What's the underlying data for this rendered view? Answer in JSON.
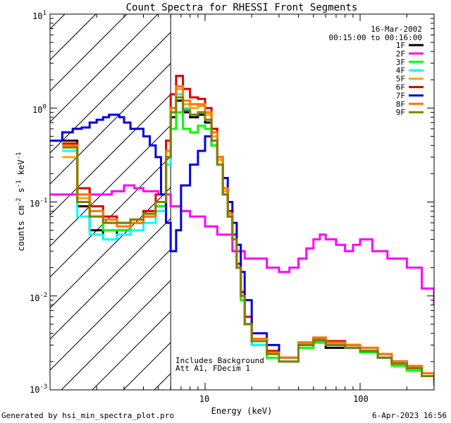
{
  "chart_data": {
    "type": "line",
    "title": "Count Spectra for RHESSI Front Segments",
    "xlabel": "Energy (keV)",
    "ylabel": "counts cm^-2 s^-1 keV^-1",
    "xscale": "log",
    "yscale": "log",
    "xlim": [
      1.0,
      300
    ],
    "ylim": [
      0.001,
      10
    ],
    "x_tick_labels": [
      "10",
      "100"
    ],
    "y_tick_labels": [
      {
        "base": "10",
        "exp": "1"
      },
      {
        "base": "10",
        "exp": "0"
      },
      {
        "base": "10",
        "exp": "-1"
      },
      {
        "base": "10",
        "exp": "-2"
      },
      {
        "base": "10",
        "exp": "-3"
      }
    ],
    "ylabel_parts": {
      "pre": "counts cm",
      "e1": "-2",
      "mid": " s",
      "e2": "-1",
      "post": " keV",
      "e3": "-1"
    },
    "date": "16-Mar-2002",
    "time_range": "00:15:00 to 00:16:00",
    "attenuator_line_keV": 6.0,
    "annotations": [
      "Includes Background",
      "Att A1, FDecim 1"
    ],
    "series": [
      {
        "name": "1F",
        "color": "#000000",
        "x": [
          1.2,
          1.5,
          1.8,
          2.2,
          2.7,
          3.3,
          4.0,
          4.8,
          5.6,
          6.0,
          6.5,
          7.2,
          8,
          9,
          10,
          11,
          12,
          13,
          14,
          15,
          16,
          17,
          18,
          20,
          25,
          30,
          40,
          50,
          60,
          80,
          100,
          130,
          160,
          200,
          250,
          300
        ],
        "y": [
          0.45,
          0.09,
          0.05,
          0.04,
          0.05,
          0.06,
          0.07,
          0.09,
          0.3,
          0.8,
          1.2,
          0.9,
          0.8,
          0.85,
          0.7,
          0.4,
          0.25,
          0.12,
          0.07,
          0.04,
          0.02,
          0.01,
          0.005,
          0.003,
          0.0025,
          0.002,
          0.003,
          0.0032,
          0.0028,
          0.003,
          0.0025,
          0.0022,
          0.002,
          0.0018,
          0.0015,
          0.0012
        ]
      },
      {
        "name": "2F",
        "color": "#ff00ff",
        "x": [
          1.0,
          1.3,
          1.6,
          2.0,
          2.5,
          3.0,
          3.5,
          4.0,
          5.0,
          5.6,
          6.0,
          7,
          8,
          10,
          12,
          15,
          18,
          20,
          25,
          30,
          35,
          40,
          45,
          50,
          55,
          60,
          70,
          80,
          90,
          100,
          120,
          150,
          200,
          250,
          300
        ],
        "y": [
          0.12,
          0.12,
          0.12,
          0.12,
          0.13,
          0.15,
          0.14,
          0.13,
          0.12,
          0.12,
          0.09,
          0.08,
          0.07,
          0.055,
          0.045,
          0.03,
          0.025,
          0.025,
          0.02,
          0.018,
          0.02,
          0.025,
          0.032,
          0.04,
          0.045,
          0.04,
          0.035,
          0.03,
          0.035,
          0.04,
          0.03,
          0.025,
          0.02,
          0.012,
          0.008
        ]
      },
      {
        "name": "3F",
        "color": "#00ff00",
        "x": [
          1.2,
          1.5,
          1.8,
          2.2,
          2.7,
          3.3,
          4.0,
          4.8,
          5.6,
          6.0,
          6.5,
          7.2,
          8,
          9,
          10,
          11,
          12,
          13,
          14,
          15,
          16,
          17,
          18,
          20,
          25,
          30,
          40,
          50,
          60,
          80,
          100,
          130,
          160,
          200,
          250,
          300
        ],
        "y": [
          0.4,
          0.12,
          0.07,
          0.05,
          0.05,
          0.06,
          0.07,
          0.09,
          0.25,
          0.6,
          0.9,
          0.6,
          0.55,
          0.65,
          0.6,
          0.4,
          0.25,
          0.12,
          0.07,
          0.04,
          0.02,
          0.009,
          0.005,
          0.003,
          0.0022,
          0.002,
          0.0028,
          0.0032,
          0.003,
          0.0028,
          0.0025,
          0.0022,
          0.0018,
          0.0016,
          0.0014,
          0.0011
        ]
      },
      {
        "name": "4F",
        "color": "#00ffff",
        "x": [
          1.2,
          1.5,
          1.8,
          2.2,
          2.7,
          3.3,
          4.0,
          4.8,
          5.6,
          6.0,
          6.5,
          7.2,
          8,
          9,
          10,
          11,
          12,
          13,
          14,
          15,
          16,
          17,
          18,
          20,
          25,
          30,
          40,
          50,
          60,
          80,
          100,
          130,
          160,
          200,
          250,
          300
        ],
        "y": [
          0.35,
          0.07,
          0.045,
          0.04,
          0.045,
          0.05,
          0.06,
          0.08,
          0.25,
          0.9,
          1.4,
          1.0,
          0.85,
          0.9,
          0.75,
          0.45,
          0.25,
          0.12,
          0.07,
          0.04,
          0.02,
          0.01,
          0.005,
          0.003,
          0.0024,
          0.002,
          0.003,
          0.0034,
          0.003,
          0.0028,
          0.0026,
          0.0022,
          0.002,
          0.0017,
          0.0014,
          0.0012
        ]
      },
      {
        "name": "5F",
        "color": "#ffa500",
        "x": [
          1.2,
          1.5,
          1.8,
          2.2,
          2.7,
          3.3,
          4.0,
          4.8,
          5.6,
          6.0,
          6.5,
          7.2,
          8,
          9,
          10,
          11,
          12,
          13,
          14,
          15,
          16,
          17,
          18,
          20,
          25,
          30,
          40,
          50,
          60,
          80,
          100,
          130,
          160,
          200,
          250,
          300
        ],
        "y": [
          0.3,
          0.11,
          0.07,
          0.06,
          0.06,
          0.065,
          0.075,
          0.1,
          0.35,
          1.0,
          1.6,
          1.1,
          1.0,
          1.05,
          0.85,
          0.5,
          0.28,
          0.13,
          0.07,
          0.04,
          0.02,
          0.01,
          0.005,
          0.0035,
          0.0026,
          0.0022,
          0.0032,
          0.0036,
          0.0032,
          0.003,
          0.0028,
          0.0024,
          0.002,
          0.0018,
          0.0015,
          0.0012
        ]
      },
      {
        "name": "6F",
        "color": "#dd0000",
        "x": [
          1.2,
          1.5,
          1.8,
          2.2,
          2.7,
          3.3,
          4.0,
          4.8,
          5.6,
          6.0,
          6.5,
          7.2,
          8,
          9,
          10,
          11,
          12,
          13,
          14,
          15,
          16,
          17,
          18,
          20,
          25,
          30,
          40,
          50,
          60,
          80,
          100,
          130,
          160,
          200,
          250,
          300
        ],
        "y": [
          0.42,
          0.14,
          0.09,
          0.07,
          0.06,
          0.065,
          0.08,
          0.12,
          0.45,
          1.4,
          2.2,
          1.6,
          1.3,
          1.25,
          1.0,
          0.6,
          0.3,
          0.14,
          0.08,
          0.045,
          0.022,
          0.011,
          0.006,
          0.0035,
          0.0026,
          0.0022,
          0.0032,
          0.0036,
          0.0033,
          0.003,
          0.0028,
          0.0024,
          0.002,
          0.0018,
          0.0015,
          0.0012
        ]
      },
      {
        "name": "7F",
        "color": "#0000dd",
        "x": [
          1.0,
          1.2,
          1.4,
          1.6,
          1.8,
          2.0,
          2.2,
          2.4,
          2.6,
          2.8,
          3.0,
          3.3,
          3.6,
          4.0,
          4.4,
          4.8,
          5.2,
          5.6,
          6.0,
          6.5,
          7,
          8,
          9,
          10,
          11,
          12,
          13,
          14,
          15,
          16,
          17,
          18,
          20,
          25,
          30,
          40,
          50,
          60,
          80,
          100,
          130,
          160,
          200,
          250,
          300
        ],
        "y": [
          0.45,
          0.55,
          0.6,
          0.62,
          0.7,
          0.75,
          0.8,
          0.85,
          0.85,
          0.8,
          0.7,
          0.6,
          0.6,
          0.5,
          0.4,
          0.3,
          0.12,
          0.06,
          0.03,
          0.05,
          0.15,
          0.25,
          0.35,
          0.5,
          0.45,
          0.3,
          0.18,
          0.1,
          0.06,
          0.035,
          0.018,
          0.009,
          0.004,
          0.003,
          0.0022,
          0.003,
          0.0034,
          0.003,
          0.0028,
          0.0026,
          0.0022,
          0.002,
          0.0017,
          0.0014,
          0.0012
        ]
      },
      {
        "name": "8F",
        "color": "#ff7700",
        "x": [
          1.2,
          1.5,
          1.8,
          2.2,
          2.7,
          3.3,
          4.0,
          4.8,
          5.6,
          6.0,
          6.5,
          7.2,
          8,
          9,
          10,
          11,
          12,
          13,
          14,
          15,
          16,
          17,
          18,
          20,
          25,
          30,
          40,
          50,
          60,
          80,
          100,
          130,
          160,
          200,
          250,
          300
        ],
        "y": [
          0.4,
          0.12,
          0.08,
          0.065,
          0.055,
          0.06,
          0.07,
          0.1,
          0.35,
          1.0,
          1.7,
          1.2,
          1.1,
          1.1,
          0.9,
          0.55,
          0.3,
          0.14,
          0.075,
          0.04,
          0.02,
          0.01,
          0.005,
          0.0035,
          0.0025,
          0.0022,
          0.0032,
          0.0036,
          0.0032,
          0.003,
          0.0028,
          0.0024,
          0.002,
          0.0018,
          0.0015,
          0.0012
        ]
      },
      {
        "name": "9F",
        "color": "#808000",
        "x": [
          1.2,
          1.5,
          1.8,
          2.2,
          2.7,
          3.3,
          4.0,
          4.8,
          5.6,
          6.0,
          6.5,
          7.2,
          8,
          9,
          10,
          11,
          12,
          13,
          14,
          15,
          16,
          17,
          18,
          20,
          25,
          30,
          40,
          50,
          60,
          80,
          100,
          130,
          160,
          200,
          250,
          300
        ],
        "y": [
          0.38,
          0.1,
          0.07,
          0.06,
          0.06,
          0.065,
          0.075,
          0.1,
          0.3,
          0.9,
          1.3,
          0.95,
          0.85,
          0.9,
          0.75,
          0.45,
          0.25,
          0.12,
          0.07,
          0.04,
          0.02,
          0.01,
          0.005,
          0.0033,
          0.0024,
          0.002,
          0.003,
          0.0034,
          0.003,
          0.0028,
          0.0026,
          0.0022,
          0.0019,
          0.0017,
          0.0014,
          0.0012
        ]
      }
    ]
  },
  "footer": {
    "generated_by": "Generated by hsi_min_spectra_plot.pro",
    "timestamp": "6-Apr-2023 16:56"
  }
}
